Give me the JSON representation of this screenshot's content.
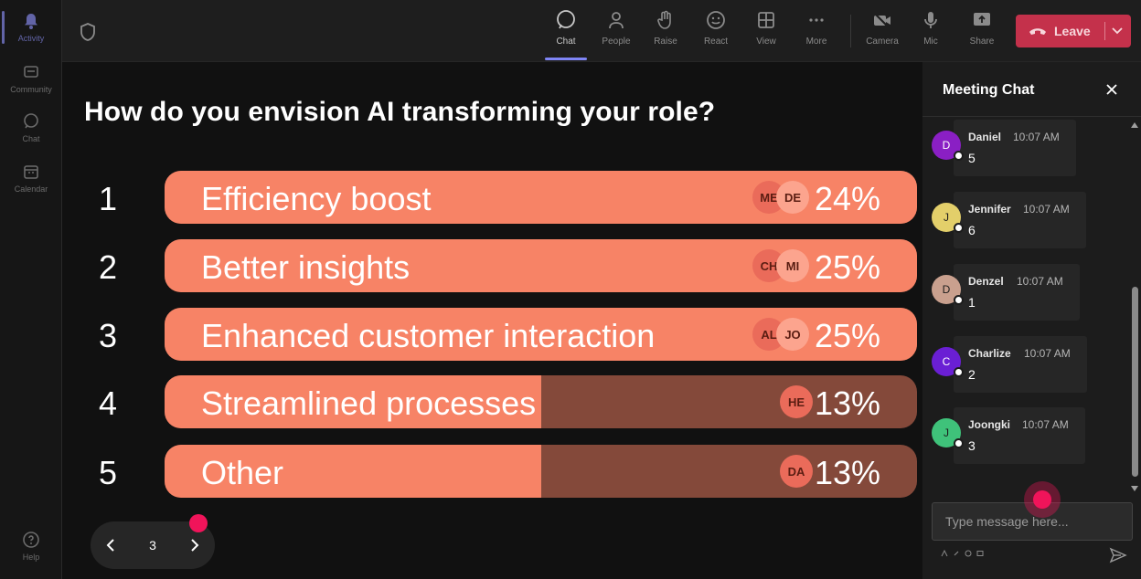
{
  "rail": {
    "items": [
      {
        "label": "Activity",
        "icon": "bell-icon"
      },
      {
        "label": "Community",
        "icon": "community-icon"
      },
      {
        "label": "Chat",
        "icon": "chat-icon"
      },
      {
        "label": "Calendar",
        "icon": "calendar-icon"
      }
    ],
    "help": "Help"
  },
  "toolbar": {
    "chat": "Chat",
    "people": "People",
    "raise": "Raise",
    "react": "React",
    "view": "View",
    "more": "More",
    "camera": "Camera",
    "mic": "Mic",
    "share": "Share",
    "leave": "Leave"
  },
  "poll": {
    "question": "How do you envision AI transforming your role?",
    "options": [
      {
        "num": "1",
        "label": "Efficiency boost",
        "percent_text": "24%",
        "fill": 1.0,
        "avatars": [
          "ME",
          "DE"
        ]
      },
      {
        "num": "2",
        "label": "Better insights",
        "percent_text": "25%",
        "fill": 1.0,
        "avatars": [
          "CH",
          "MI"
        ]
      },
      {
        "num": "3",
        "label": "Enhanced customer interaction",
        "percent_text": "25%",
        "fill": 1.0,
        "avatars": [
          "AL",
          "JO"
        ]
      },
      {
        "num": "4",
        "label": "Streamlined processes",
        "percent_text": "13%",
        "fill": 0.5,
        "avatars": [
          "HE"
        ]
      },
      {
        "num": "5",
        "label": "Other",
        "percent_text": "13%",
        "fill": 0.5,
        "avatars": [
          "DA"
        ]
      }
    ],
    "colors": {
      "fill": "#f78366",
      "track": "#84493a"
    }
  },
  "pager": {
    "page": "3"
  },
  "chat": {
    "title": "Meeting Chat",
    "messages": [
      {
        "initial": "D",
        "name": "Daniel",
        "time": "10:07 AM",
        "text": "5",
        "color": "#8a1fc4"
      },
      {
        "initial": "J",
        "name": "Jennifer",
        "time": "10:07 AM",
        "text": "6",
        "color": "#e3cf6a"
      },
      {
        "initial": "D",
        "name": "Denzel",
        "time": "10:07 AM",
        "text": "1",
        "color": "#c9a08e"
      },
      {
        "initial": "C",
        "name": "Charlize",
        "time": "10:07 AM",
        "text": "2",
        "color": "#6a1fd4"
      },
      {
        "initial": "J",
        "name": "Joongki",
        "time": "10:07 AM",
        "text": "3",
        "color": "#3fc27a"
      }
    ],
    "input_placeholder": "Type message here..."
  }
}
